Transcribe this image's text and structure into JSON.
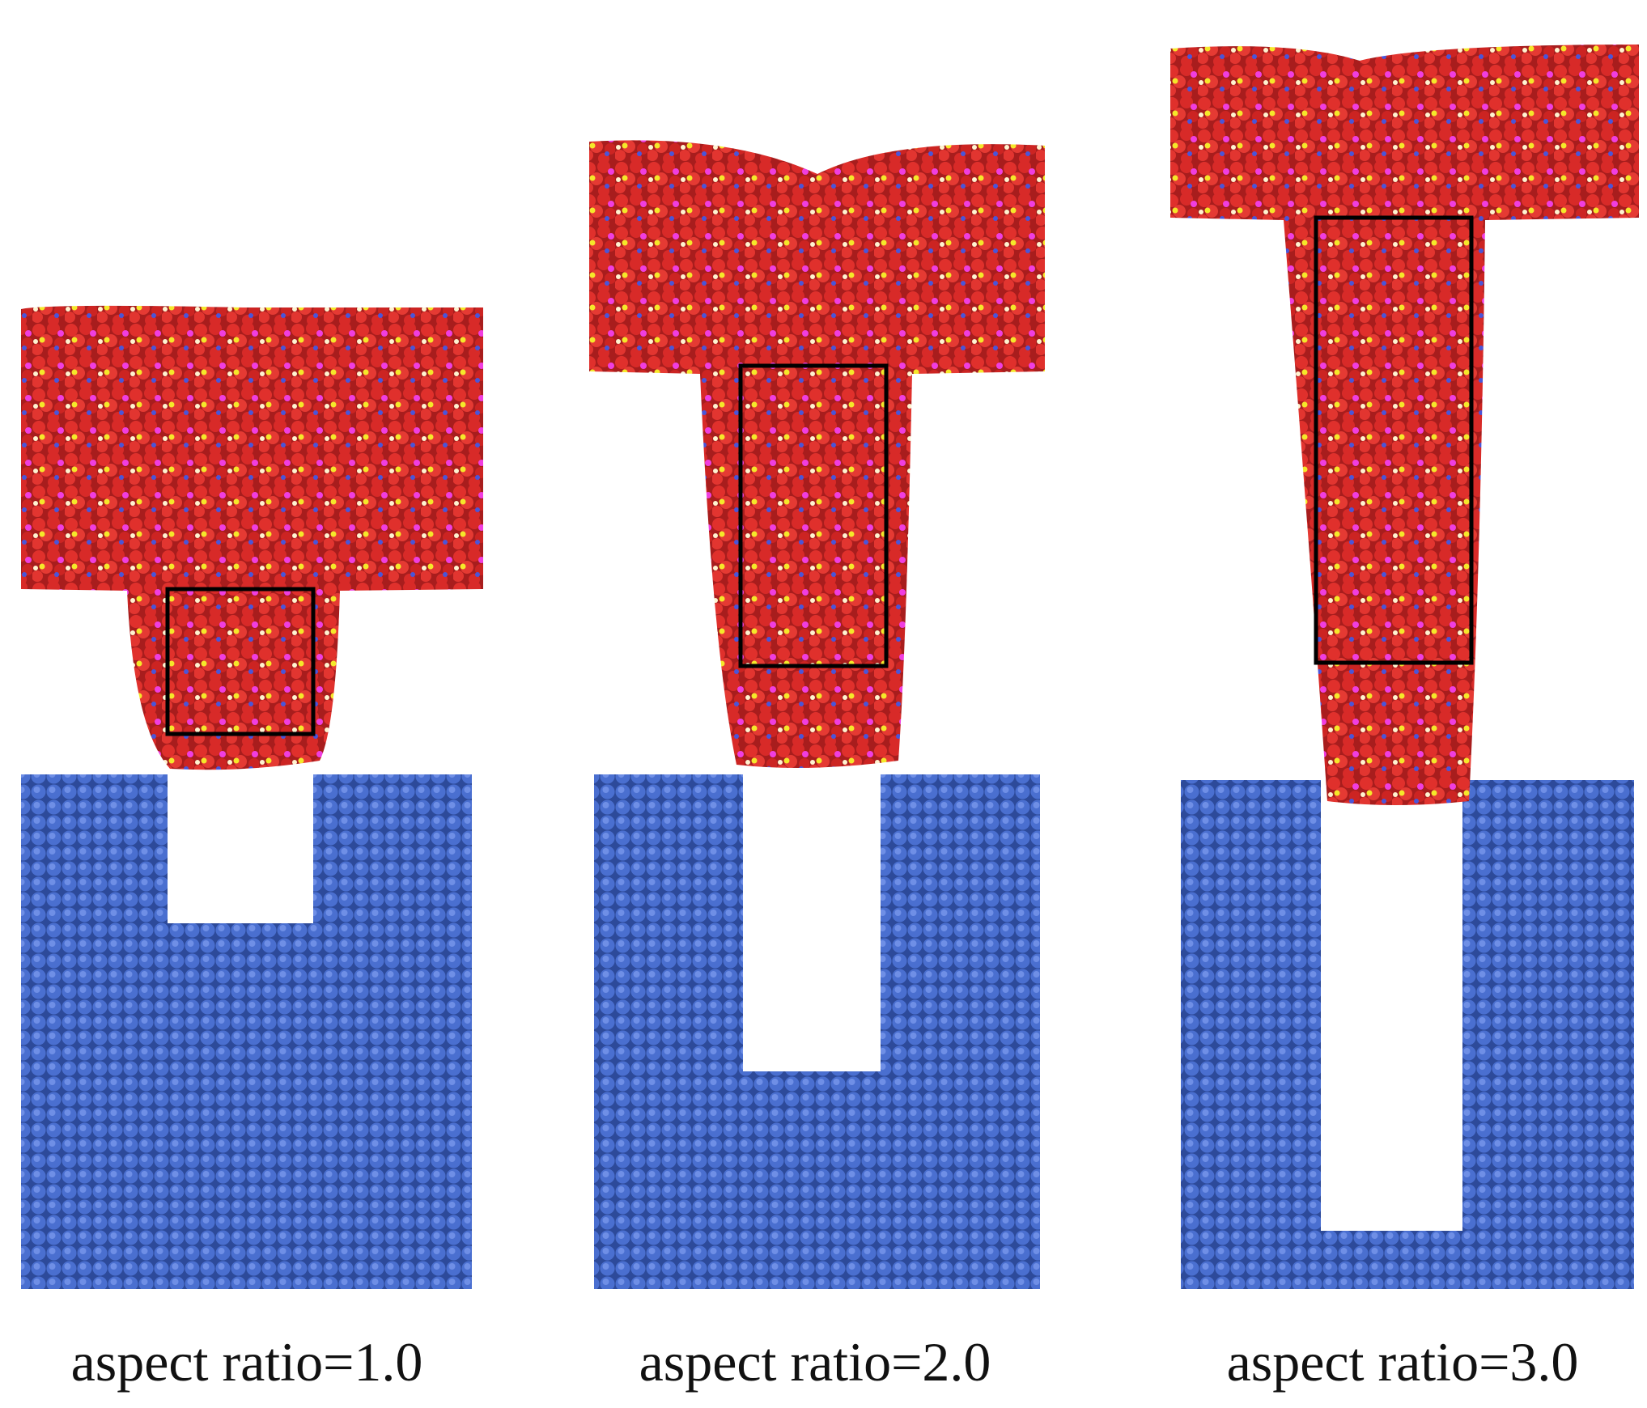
{
  "panels": [
    {
      "label": "aspect ratio=1.0"
    },
    {
      "label": "aspect ratio=2.0"
    },
    {
      "label": "aspect ratio=3.0"
    }
  ]
}
